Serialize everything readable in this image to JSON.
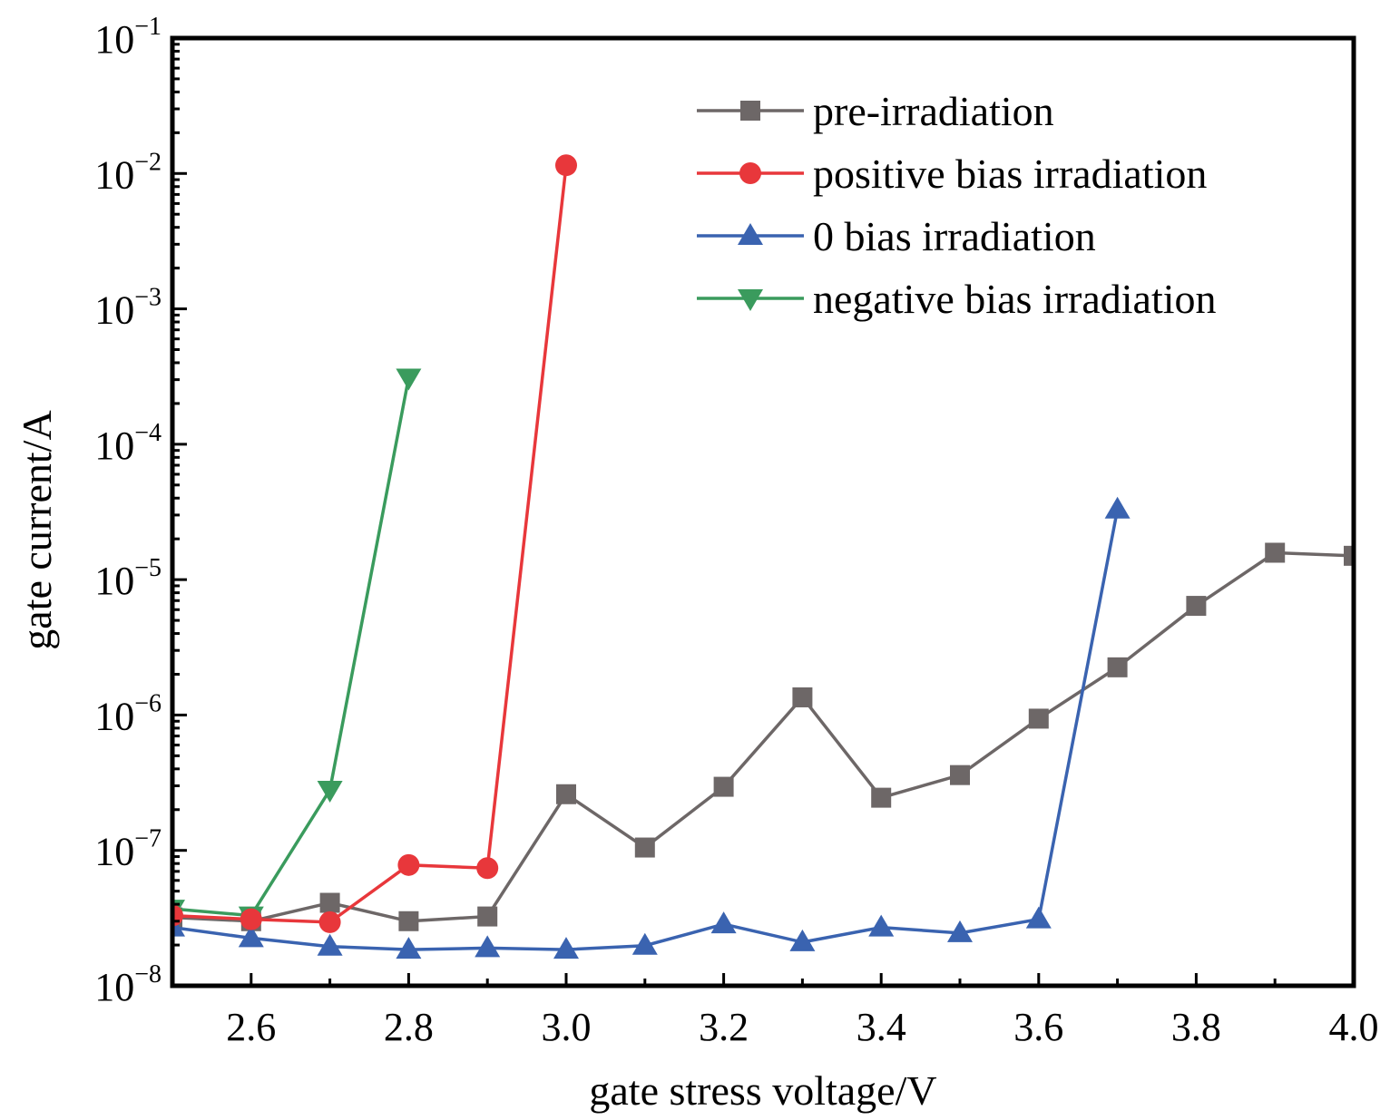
{
  "chart_data": {
    "type": "line",
    "xlabel": "gate stress voltage/V",
    "ylabel": "gate current/A",
    "xlim": [
      2.5,
      4.0
    ],
    "ylim": [
      1e-08,
      0.1
    ],
    "yscale": "log",
    "grid": false,
    "legend_position": "top-right",
    "x_ticks": [
      {
        "value": 2.6,
        "label": "2.6"
      },
      {
        "value": 2.8,
        "label": "2.8"
      },
      {
        "value": 3.0,
        "label": "3.0"
      },
      {
        "value": 3.2,
        "label": "3.2"
      },
      {
        "value": 3.4,
        "label": "3.4"
      },
      {
        "value": 3.6,
        "label": "3.6"
      },
      {
        "value": 3.8,
        "label": "3.8"
      },
      {
        "value": 4.0,
        "label": "4.0"
      }
    ],
    "y_ticks": [
      {
        "value": 1e-08,
        "base": "10",
        "exp": "−8"
      },
      {
        "value": 1e-07,
        "base": "10",
        "exp": "−7"
      },
      {
        "value": 1e-06,
        "base": "10",
        "exp": "−6"
      },
      {
        "value": 1e-05,
        "base": "10",
        "exp": "−5"
      },
      {
        "value": 0.0001,
        "base": "10",
        "exp": "−4"
      },
      {
        "value": 0.001,
        "base": "10",
        "exp": "−3"
      },
      {
        "value": 0.01,
        "base": "10",
        "exp": "−2"
      },
      {
        "value": 0.1,
        "base": "10",
        "exp": "−1"
      }
    ],
    "series": [
      {
        "name": "pre-irradiation",
        "color": "#6d6767",
        "marker": "square",
        "points": [
          [
            2.5,
            3.2e-08
          ],
          [
            2.6,
            3e-08
          ],
          [
            2.7,
            4.1e-08
          ],
          [
            2.8,
            3e-08
          ],
          [
            2.9,
            3.25e-08
          ],
          [
            3.0,
            2.6e-07
          ],
          [
            3.1,
            1.05e-07
          ],
          [
            3.2,
            2.95e-07
          ],
          [
            3.3,
            1.35e-06
          ],
          [
            3.4,
            2.45e-07
          ],
          [
            3.5,
            3.6e-07
          ],
          [
            3.6,
            9.4e-07
          ],
          [
            3.7,
            2.25e-06
          ],
          [
            3.8,
            6.4e-06
          ],
          [
            3.9,
            1.58e-05
          ],
          [
            4.0,
            1.5e-05
          ]
        ]
      },
      {
        "name": "positive bias irradiation",
        "color": "#e8373b",
        "marker": "circle",
        "points": [
          [
            2.5,
            3.3e-08
          ],
          [
            2.6,
            3.1e-08
          ],
          [
            2.7,
            2.95e-08
          ],
          [
            2.8,
            7.8e-08
          ],
          [
            2.9,
            7.4e-08
          ],
          [
            3.0,
            0.0115
          ]
        ]
      },
      {
        "name": "0 bias irradiation",
        "color": "#3a63b0",
        "marker": "triangle-up",
        "points": [
          [
            2.5,
            2.7e-08
          ],
          [
            2.6,
            2.25e-08
          ],
          [
            2.7,
            1.95e-08
          ],
          [
            2.8,
            1.85e-08
          ],
          [
            2.9,
            1.9e-08
          ],
          [
            3.0,
            1.85e-08
          ],
          [
            3.1,
            1.98e-08
          ],
          [
            3.2,
            2.85e-08
          ],
          [
            3.3,
            2.1e-08
          ],
          [
            3.4,
            2.7e-08
          ],
          [
            3.5,
            2.45e-08
          ],
          [
            3.6,
            3.1e-08
          ],
          [
            3.7,
            3.3e-05
          ]
        ]
      },
      {
        "name": "negative bias irradiation",
        "color": "#3a9b5d",
        "marker": "triangle-down",
        "points": [
          [
            2.5,
            3.7e-08
          ],
          [
            2.6,
            3.3e-08
          ],
          [
            2.7,
            2.8e-07
          ],
          [
            2.8,
            0.00031
          ]
        ]
      }
    ]
  }
}
